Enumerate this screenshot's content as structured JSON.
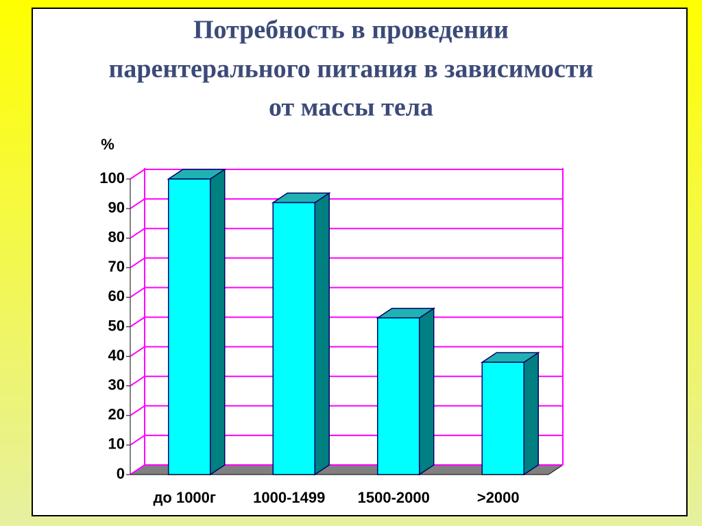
{
  "chart_data": {
    "type": "bar3d",
    "title": [
      "Потребность в проведении",
      "парентерального питания в зависимости",
      "от массы тела"
    ],
    "y_label": "%",
    "categories": [
      "до 1000г",
      "1000-1499",
      "1500-2000",
      ">2000"
    ],
    "values": [
      100,
      92,
      53,
      38
    ],
    "color": "#00ffff",
    "ylim": [
      0,
      100
    ],
    "yticks": [
      0,
      10,
      20,
      30,
      40,
      50,
      60,
      70,
      80,
      90,
      100
    ],
    "grid": true
  }
}
